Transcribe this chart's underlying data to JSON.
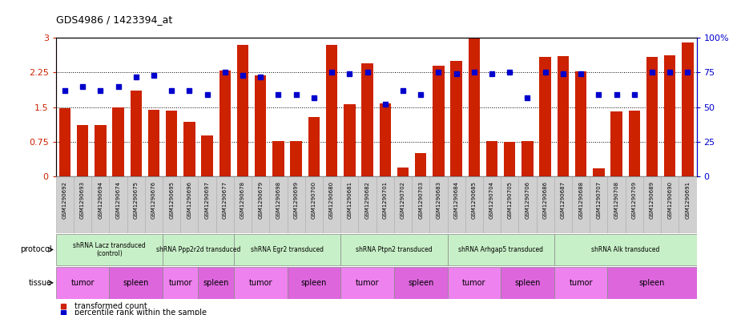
{
  "title": "GDS4986 / 1423394_at",
  "sample_ids": [
    "GSM1290692",
    "GSM1290693",
    "GSM1290694",
    "GSM1290674",
    "GSM1290675",
    "GSM1290676",
    "GSM1290695",
    "GSM1290696",
    "GSM1290697",
    "GSM1290677",
    "GSM1290678",
    "GSM1290679",
    "GSM1290698",
    "GSM1290699",
    "GSM1290700",
    "GSM1290680",
    "GSM1290681",
    "GSM1290682",
    "GSM1290701",
    "GSM1290702",
    "GSM1290703",
    "GSM1290683",
    "GSM1290684",
    "GSM1290685",
    "GSM1290704",
    "GSM1290705",
    "GSM1290706",
    "GSM1290686",
    "GSM1290687",
    "GSM1290688",
    "GSM1290707",
    "GSM1290708",
    "GSM1290709",
    "GSM1290689",
    "GSM1290690",
    "GSM1290691"
  ],
  "bar_values": [
    1.48,
    1.12,
    1.12,
    1.5,
    1.85,
    1.45,
    1.42,
    1.18,
    0.88,
    2.3,
    2.85,
    2.18,
    0.77,
    0.77,
    1.28,
    2.85,
    1.57,
    2.45,
    1.58,
    0.2,
    0.5,
    2.4,
    2.5,
    3.0,
    0.77,
    0.75,
    0.77,
    2.58,
    2.6,
    2.28,
    0.18,
    1.4,
    1.42,
    2.58,
    2.62,
    2.9
  ],
  "dot_pct": [
    62,
    65,
    62,
    65,
    72,
    73,
    62,
    62,
    59,
    75,
    73,
    72,
    59,
    59,
    57,
    75,
    74,
    75,
    52,
    62,
    59,
    75,
    74,
    75,
    74,
    75,
    57,
    75,
    74,
    74,
    59,
    59,
    59,
    75,
    75,
    75
  ],
  "protocols": [
    {
      "label": "shRNA Lacz transduced\n(control)",
      "start": 0,
      "end": 6
    },
    {
      "label": "shRNA Ppp2r2d transduced",
      "start": 6,
      "end": 10
    },
    {
      "label": "shRNA Egr2 transduced",
      "start": 10,
      "end": 16
    },
    {
      "label": "shRNA Ptpn2 transduced",
      "start": 16,
      "end": 22
    },
    {
      "label": "shRNA Arhgap5 transduced",
      "start": 22,
      "end": 28
    },
    {
      "label": "shRNA Alk transduced",
      "start": 28,
      "end": 36
    }
  ],
  "tissues": [
    {
      "label": "tumor",
      "start": 0,
      "end": 3
    },
    {
      "label": "spleen",
      "start": 3,
      "end": 6
    },
    {
      "label": "tumor",
      "start": 6,
      "end": 8
    },
    {
      "label": "spleen",
      "start": 8,
      "end": 10
    },
    {
      "label": "tumor",
      "start": 10,
      "end": 13
    },
    {
      "label": "spleen",
      "start": 13,
      "end": 16
    },
    {
      "label": "tumor",
      "start": 16,
      "end": 19
    },
    {
      "label": "spleen",
      "start": 19,
      "end": 22
    },
    {
      "label": "tumor",
      "start": 22,
      "end": 25
    },
    {
      "label": "spleen",
      "start": 25,
      "end": 28
    },
    {
      "label": "tumor",
      "start": 28,
      "end": 31
    },
    {
      "label": "spleen",
      "start": 31,
      "end": 36
    }
  ],
  "bar_color": "#cc2200",
  "dot_color": "#0000cc",
  "ylim_left": [
    0,
    3.0
  ],
  "ylim_right": [
    0,
    100
  ],
  "yticks_left": [
    0,
    0.75,
    1.5,
    2.25,
    3.0
  ],
  "yticks_right": [
    0,
    25,
    50,
    75,
    100
  ],
  "bg_color": "#ffffff",
  "protocol_color": "#c8f0c8",
  "tumor_color": "#ee82ee",
  "spleen_color": "#dd66dd",
  "legend_bar": "transformed count",
  "legend_dot": "percentile rank within the sample"
}
